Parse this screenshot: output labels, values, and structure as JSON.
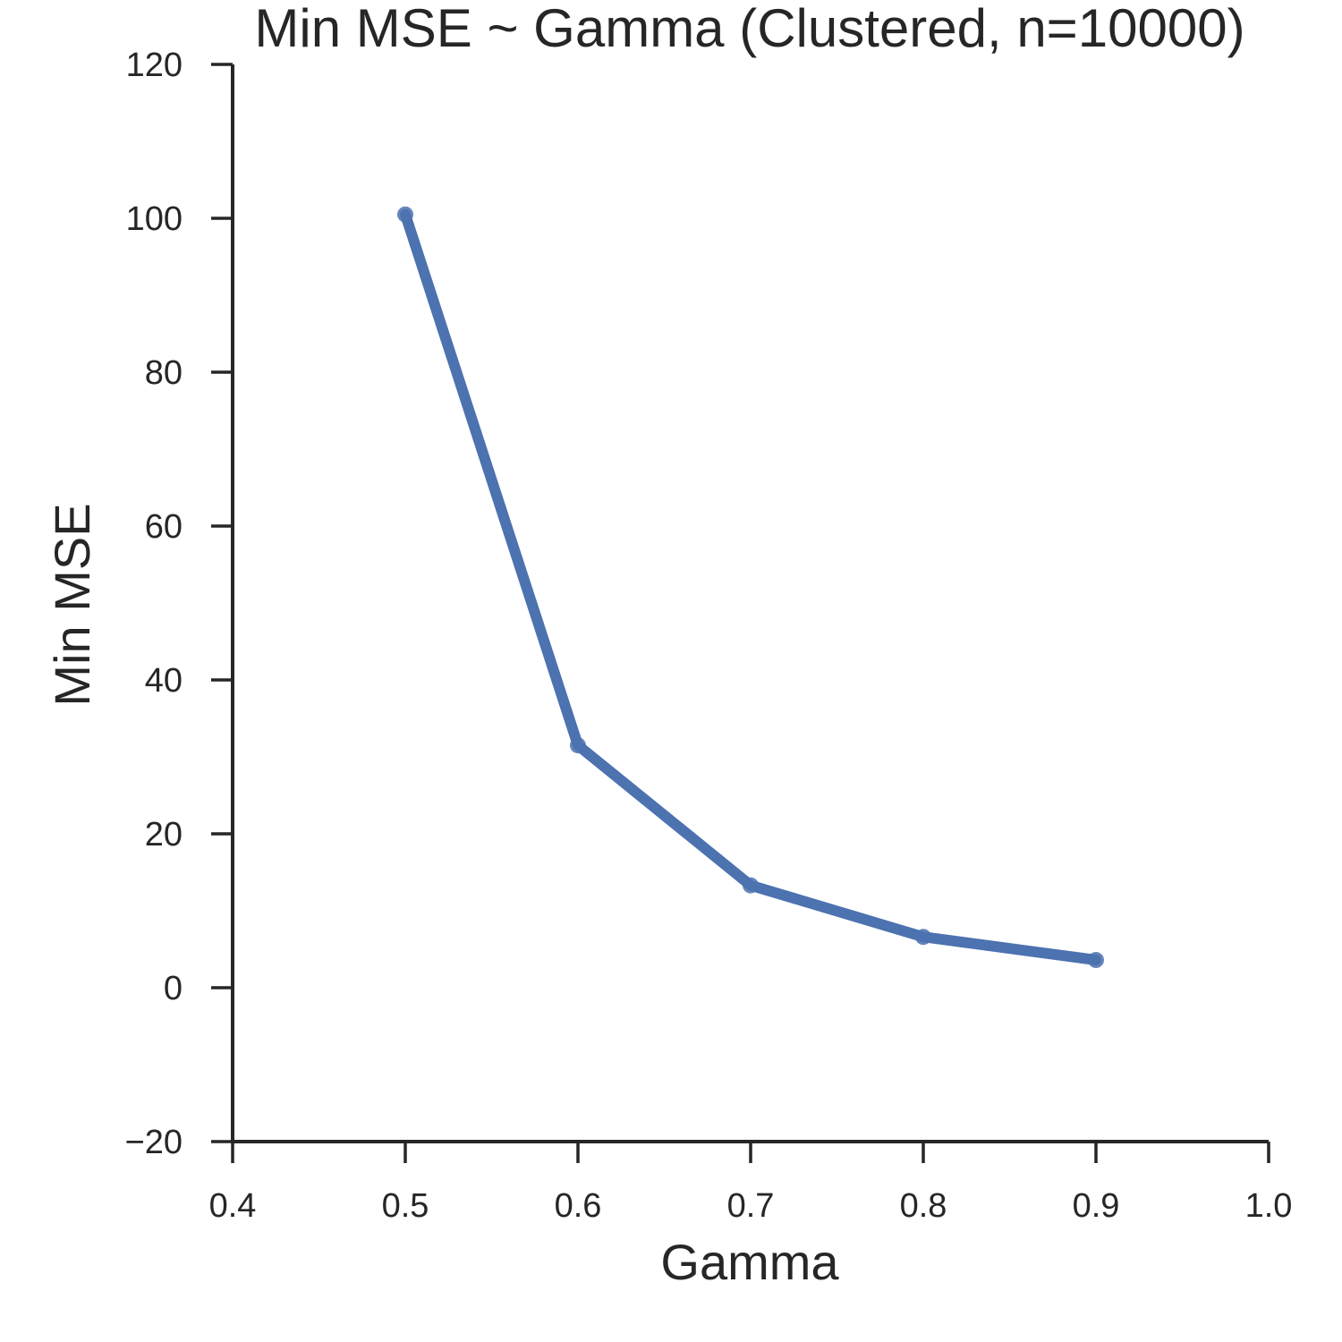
{
  "chart_data": {
    "type": "line",
    "title": "Min MSE ~ Gamma (Clustered, n=10000)",
    "xlabel": "Gamma",
    "ylabel": "Min MSE",
    "xlim": [
      0.4,
      1.0
    ],
    "ylim": [
      -20,
      120
    ],
    "xticks": [
      "0.4",
      "0.5",
      "0.6",
      "0.7",
      "0.8",
      "0.9",
      "1.0"
    ],
    "yticks": [
      "−20",
      "0",
      "20",
      "40",
      "60",
      "80",
      "100",
      "120"
    ],
    "grid": false,
    "legend": "none",
    "series": [
      {
        "color": "#4c72b0",
        "x": [
          0.5,
          0.6,
          0.7,
          0.8,
          0.9
        ],
        "y": [
          100.5,
          31.5,
          13.3,
          6.6,
          3.6
        ]
      }
    ]
  }
}
